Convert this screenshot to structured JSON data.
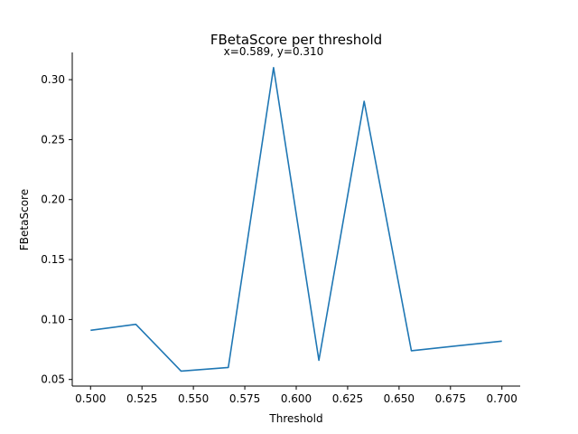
{
  "chart_data": {
    "type": "line",
    "title": "FBetaScore per threshold",
    "xlabel": "Threshold",
    "ylabel": "FBetaScore",
    "annotation": "x=0.589, y=0.310",
    "xlim": [
      0.4911,
      0.7089
    ],
    "ylim": [
      0.0445,
      0.3227
    ],
    "xticks": [
      0.5,
      0.525,
      0.55,
      0.575,
      0.6,
      0.625,
      0.65,
      0.675,
      0.7
    ],
    "xtick_labels": [
      "0.500",
      "0.525",
      "0.550",
      "0.575",
      "0.600",
      "0.625",
      "0.650",
      "0.675",
      "0.700"
    ],
    "yticks": [
      0.05,
      0.1,
      0.15,
      0.2,
      0.25,
      0.3
    ],
    "ytick_labels": [
      "0.05",
      "0.10",
      "0.15",
      "0.20",
      "0.25",
      "0.30"
    ],
    "grid": false,
    "series": [
      {
        "color": "#1f77b4",
        "x": [
          0.5,
          0.522,
          0.544,
          0.567,
          0.589,
          0.611,
          0.633,
          0.656,
          0.7
        ],
        "y": [
          0.091,
          0.096,
          0.057,
          0.06,
          0.31,
          0.066,
          0.282,
          0.074,
          0.082
        ]
      }
    ]
  }
}
